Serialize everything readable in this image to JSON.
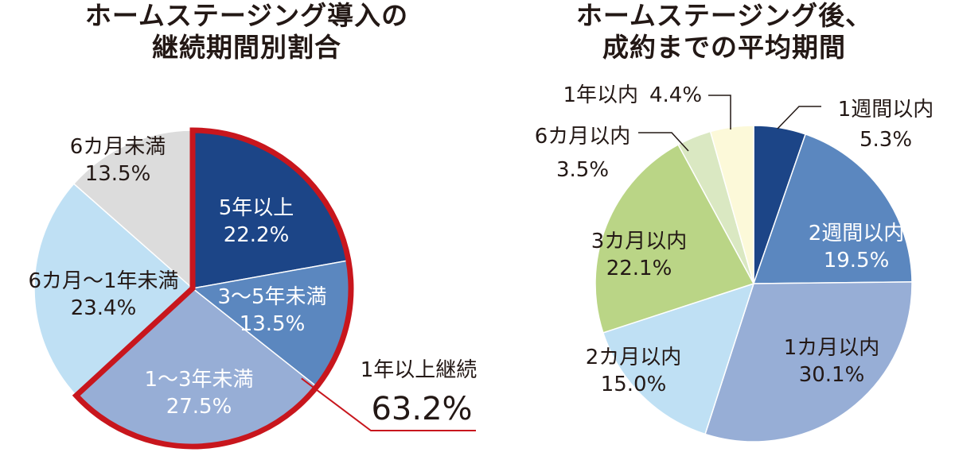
{
  "chart_data": [
    {
      "type": "pie",
      "title": [
        "ホームステージング導入の",
        "継続期間別割合"
      ],
      "slices": [
        {
          "label": "5年以上",
          "value": 22.2,
          "display": "22.2%",
          "color": "#1c4587",
          "text_color": "#ffffff"
        },
        {
          "label": "3〜5年未満",
          "value": 13.5,
          "display": "13.5%",
          "color": "#5b87bf",
          "text_color": "#ffffff"
        },
        {
          "label": "1〜3年未満",
          "value": 27.5,
          "display": "27.5%",
          "color": "#97aed6",
          "text_color": "#ffffff"
        },
        {
          "label": "6カ月〜1年未満",
          "value": 23.4,
          "display": "23.4%",
          "color": "#bfe0f4",
          "text_color": "#231815"
        },
        {
          "label": "6カ月未満",
          "value": 13.5,
          "display": "13.5%",
          "color": "#dcdcdc",
          "text_color": "#231815"
        }
      ],
      "highlight": {
        "label": "1年以上継続",
        "value": "63.2%",
        "color": "#c8161d",
        "slices": [
          0,
          1,
          2
        ]
      }
    },
    {
      "type": "pie",
      "title": [
        "ホームステージング後、",
        "成約までの平均期間"
      ],
      "slices": [
        {
          "label": "1週間以内",
          "value": 5.3,
          "display": "5.3%",
          "color": "#1c4587",
          "text_color": "#231815"
        },
        {
          "label": "2週間以内",
          "value": 19.5,
          "display": "19.5%",
          "color": "#5b87bf",
          "text_color": "#ffffff"
        },
        {
          "label": "1カ月以内",
          "value": 30.1,
          "display": "30.1%",
          "color": "#97aed6",
          "text_color": "#231815"
        },
        {
          "label": "2カ月以内",
          "value": 15.0,
          "display": "15.0%",
          "color": "#bfe0f4",
          "text_color": "#231815"
        },
        {
          "label": "3カ月以内",
          "value": 22.1,
          "display": "22.1%",
          "color": "#bad586",
          "text_color": "#231815"
        },
        {
          "label": "6カ月以内",
          "value": 3.5,
          "display": "3.5%",
          "color": "#dae8c2",
          "text_color": "#231815"
        },
        {
          "label": "1年以内",
          "value": 4.4,
          "display": "4.4%",
          "color": "#fcf9d9",
          "text_color": "#231815"
        }
      ]
    }
  ]
}
